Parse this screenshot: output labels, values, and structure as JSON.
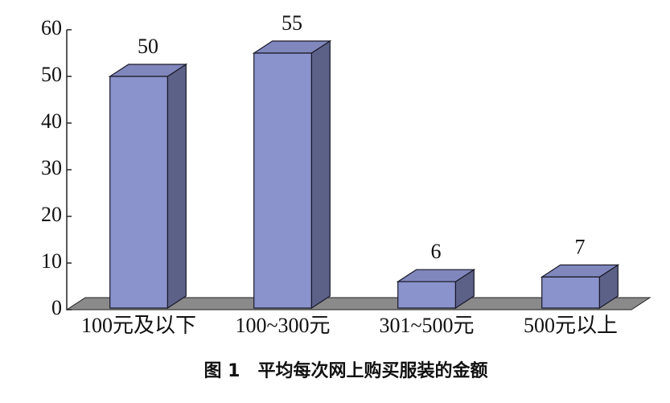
{
  "chart_data": {
    "type": "bar3d",
    "caption": "图 1　平均每次网上购买服装的金额",
    "categories": [
      "100元及以下",
      "100~300元",
      "301~500元",
      "500元以上"
    ],
    "values": [
      50,
      55,
      6,
      7
    ],
    "color": "#8b93cc",
    "ylim": [
      0,
      60
    ],
    "yticks": [
      0,
      10,
      20,
      30,
      40,
      50,
      60
    ]
  }
}
